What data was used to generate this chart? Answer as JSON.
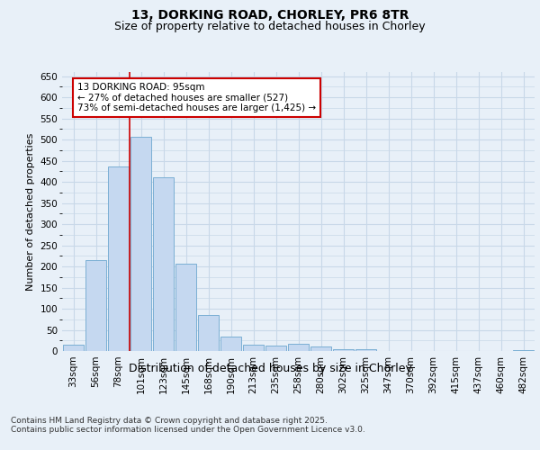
{
  "title": "13, DORKING ROAD, CHORLEY, PR6 8TR",
  "subtitle": "Size of property relative to detached houses in Chorley",
  "xlabel": "Distribution of detached houses by size in Chorley",
  "ylabel": "Number of detached properties",
  "footer": "Contains HM Land Registry data © Crown copyright and database right 2025.\nContains public sector information licensed under the Open Government Licence v3.0.",
  "categories": [
    "33sqm",
    "56sqm",
    "78sqm",
    "101sqm",
    "123sqm",
    "145sqm",
    "168sqm",
    "190sqm",
    "213sqm",
    "235sqm",
    "258sqm",
    "280sqm",
    "302sqm",
    "325sqm",
    "347sqm",
    "370sqm",
    "392sqm",
    "415sqm",
    "437sqm",
    "460sqm",
    "482sqm"
  ],
  "values": [
    15,
    215,
    437,
    507,
    410,
    207,
    85,
    35,
    15,
    13,
    17,
    11,
    5,
    4,
    1,
    1,
    0,
    0,
    1,
    0,
    3
  ],
  "bar_color": "#c5d8f0",
  "bar_edge_color": "#7bafd4",
  "vline_color": "#cc0000",
  "annotation_text": "13 DORKING ROAD: 95sqm\n← 27% of detached houses are smaller (527)\n73% of semi-detached houses are larger (1,425) →",
  "annotation_box_color": "#ffffff",
  "annotation_box_edge": "#cc0000",
  "ylim": [
    0,
    660
  ],
  "yticks": [
    0,
    50,
    100,
    150,
    200,
    250,
    300,
    350,
    400,
    450,
    500,
    550,
    600,
    650
  ],
  "grid_color": "#c8d8e8",
  "bg_color": "#e8f0f8",
  "plot_bg_color": "#e8f0f8",
  "title_fontsize": 10,
  "subtitle_fontsize": 9,
  "xlabel_fontsize": 9,
  "ylabel_fontsize": 8,
  "tick_fontsize": 7.5,
  "footer_fontsize": 6.5,
  "annotation_fontsize": 7.5
}
